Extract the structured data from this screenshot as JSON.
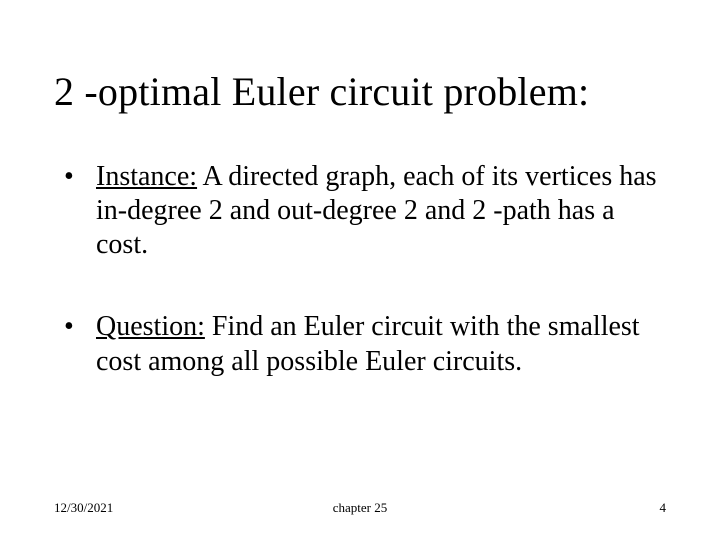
{
  "colors": {
    "background": "#ffffff",
    "text": "#000000"
  },
  "typography": {
    "title_fontsize": 40,
    "body_fontsize": 28,
    "footer_fontsize": 13,
    "font_family": "Times New Roman"
  },
  "title": "2 -optimal Euler circuit problem:",
  "bullets": [
    {
      "lead": "Instance:",
      "rest": " A directed graph, each of its vertices has in-degree 2 and out-degree 2 and 2 -path has a cost."
    },
    {
      "lead": "Question:",
      "rest": " Find an Euler circuit with the smallest cost among all possible Euler circuits."
    }
  ],
  "footer": {
    "date": "12/30/2021",
    "center": "chapter 25",
    "page": "4"
  }
}
